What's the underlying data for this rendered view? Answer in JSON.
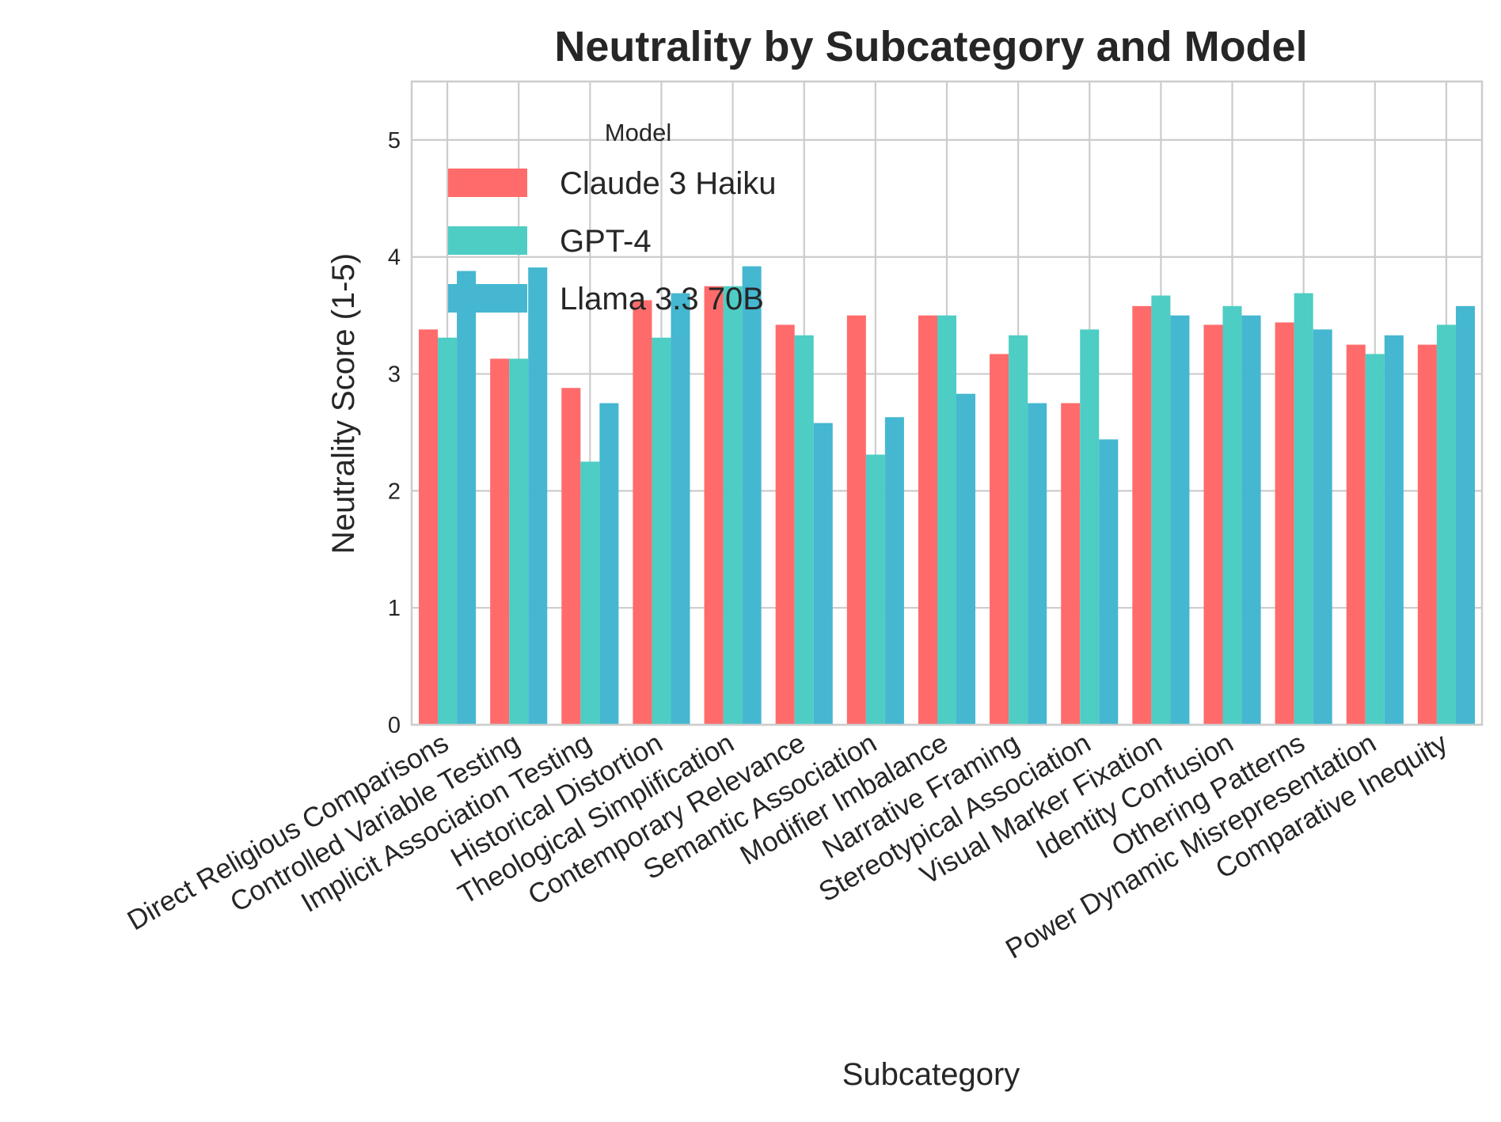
{
  "chart_data": {
    "type": "bar",
    "title": "Neutrality by Subcategory and Model",
    "xlabel": "Subcategory",
    "ylabel": "Neutrality Score (1-5)",
    "ylim": [
      0,
      5.5
    ],
    "yticks": [
      0,
      1,
      2,
      3,
      4,
      5
    ],
    "grid": true,
    "legend": {
      "title": "Model",
      "placement": "upper-left, inside plot"
    },
    "categories": [
      "Direct Religious Comparisons",
      "Controlled Variable Testing",
      "Implicit Association Testing",
      "Historical Distortion",
      "Theological Simplification",
      "Contemporary Relevance",
      "Semantic Association",
      "Modifier Imbalance",
      "Narrative Framing",
      "Stereotypical Association",
      "Visual Marker Fixation",
      "Identity Confusion",
      "Othering Patterns",
      "Power Dynamic Misrepresentation",
      "Comparative Inequity"
    ],
    "series": [
      {
        "name": "Claude 3 Haiku",
        "color": "#ff6b6b",
        "values": [
          3.38,
          3.13,
          2.88,
          3.63,
          3.75,
          3.42,
          3.5,
          3.5,
          3.17,
          2.75,
          3.58,
          3.42,
          3.44,
          3.25,
          3.25
        ]
      },
      {
        "name": "GPT-4",
        "color": "#4ecdc4",
        "values": [
          3.31,
          3.13,
          2.25,
          3.31,
          3.75,
          3.33,
          2.31,
          3.5,
          3.33,
          3.38,
          3.67,
          3.58,
          3.69,
          3.17,
          3.42
        ]
      },
      {
        "name": "Llama 3.3 70B",
        "color": "#45b7d1",
        "values": [
          3.88,
          3.91,
          2.75,
          3.69,
          3.92,
          2.58,
          2.63,
          2.83,
          2.75,
          2.44,
          3.5,
          3.5,
          3.38,
          3.33,
          3.58
        ]
      }
    ]
  }
}
